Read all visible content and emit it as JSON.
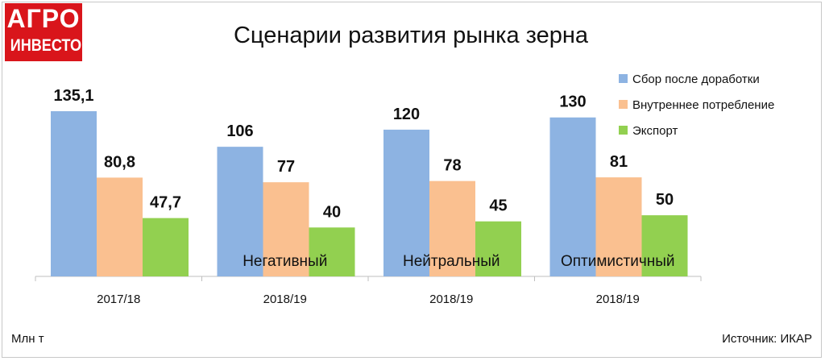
{
  "logo": {
    "line1": "АГРО",
    "line2": "ИНВЕСТОР"
  },
  "title": "Сценарии развития рынка зерна",
  "unit_label": "Млн т",
  "source_label": "Источник: ИКАР",
  "chart_data": {
    "type": "bar",
    "title": "Сценарии развития рынка зерна",
    "xlabel": "",
    "ylabel": "",
    "categories": [
      "2017/18",
      "2018/19",
      "2018/19",
      "2018/19"
    ],
    "group_labels": [
      "",
      "Негативный",
      "Нейтральный",
      "Оптимистичный"
    ],
    "series": [
      {
        "name": "Сбор после доработки",
        "color": "#8db3e2",
        "values": [
          135.1,
          106,
          120,
          130
        ],
        "labels": [
          "135,1",
          "106",
          "120",
          "130"
        ]
      },
      {
        "name": "Внутреннее потребление",
        "color": "#fac090",
        "values": [
          80.8,
          77,
          78,
          81
        ],
        "labels": [
          "80,8",
          "77",
          "78",
          "81"
        ]
      },
      {
        "name": "Экспорт",
        "color": "#92d050",
        "values": [
          47.7,
          40,
          45,
          50
        ],
        "labels": [
          "47,7",
          "40",
          "45",
          "50"
        ]
      }
    ],
    "ylim": [
      0,
      150
    ],
    "grid": false,
    "legend": "top-right"
  }
}
